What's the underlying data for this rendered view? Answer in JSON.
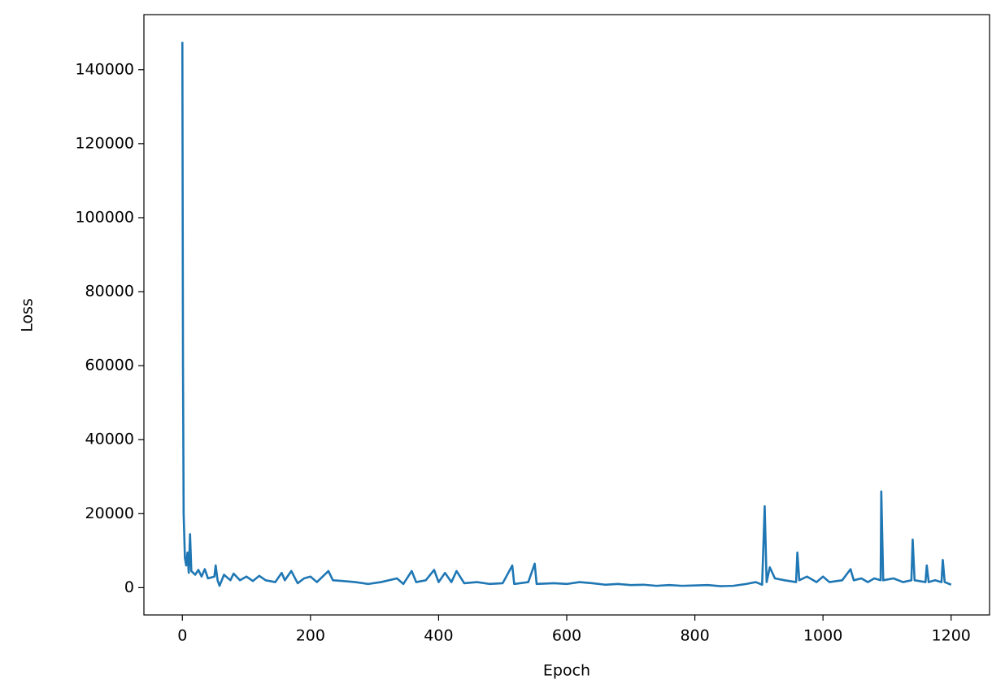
{
  "chart_data": {
    "type": "line",
    "xlabel": "Epoch",
    "ylabel": "Loss",
    "color": "#1f77b4",
    "x": [
      0,
      1,
      2,
      4,
      6,
      8,
      10,
      12,
      14,
      20,
      25,
      30,
      35,
      40,
      50,
      52,
      55,
      58,
      65,
      75,
      80,
      90,
      100,
      110,
      120,
      130,
      145,
      155,
      160,
      170,
      180,
      190,
      200,
      210,
      228,
      235,
      250,
      270,
      290,
      310,
      335,
      345,
      358,
      365,
      380,
      393,
      400,
      410,
      420,
      428,
      440,
      460,
      480,
      500,
      515,
      518,
      540,
      550,
      553,
      580,
      600,
      620,
      640,
      660,
      680,
      700,
      720,
      740,
      760,
      780,
      800,
      820,
      840,
      860,
      880,
      895,
      905,
      909,
      912,
      917,
      925,
      940,
      958,
      960,
      963,
      975,
      990,
      1000,
      1010,
      1030,
      1043,
      1048,
      1060,
      1070,
      1080,
      1090,
      1091,
      1094,
      1110,
      1125,
      1138,
      1140,
      1143,
      1160,
      1162,
      1165,
      1175,
      1185,
      1187,
      1190,
      1200
    ],
    "y": [
      147500,
      60000,
      20000,
      8000,
      6000,
      9500,
      4000,
      14500,
      4500,
      3500,
      4800,
      3000,
      5000,
      2500,
      3000,
      6000,
      2000,
      500,
      3500,
      2000,
      3800,
      2000,
      3000,
      1800,
      3200,
      2000,
      1500,
      4000,
      2000,
      4500,
      1200,
      2500,
      3000,
      1500,
      4500,
      2000,
      1800,
      1500,
      1000,
      1500,
      2500,
      1000,
      4500,
      1500,
      2000,
      4800,
      1500,
      4000,
      1500,
      4500,
      1200,
      1500,
      1000,
      1200,
      6000,
      1000,
      1500,
      6500,
      1000,
      1200,
      1000,
      1500,
      1200,
      800,
      1000,
      700,
      800,
      500,
      700,
      500,
      600,
      700,
      400,
      500,
      1000,
      1500,
      800,
      22000,
      1500,
      5500,
      2500,
      2000,
      1500,
      9500,
      2000,
      3000,
      1500,
      3000,
      1500,
      2000,
      5000,
      2000,
      2500,
      1500,
      2500,
      2000,
      26000,
      2000,
      2500,
      1500,
      2000,
      13000,
      2000,
      1500,
      6000,
      1500,
      2000,
      1500,
      7500,
      1500,
      800
    ],
    "xlim": [
      -60,
      1260
    ],
    "ylim": [
      -7375,
      154875
    ],
    "xticks": [
      0,
      200,
      400,
      600,
      800,
      1000,
      1200
    ],
    "yticks": [
      0,
      20000,
      40000,
      60000,
      80000,
      100000,
      120000,
      140000
    ]
  }
}
